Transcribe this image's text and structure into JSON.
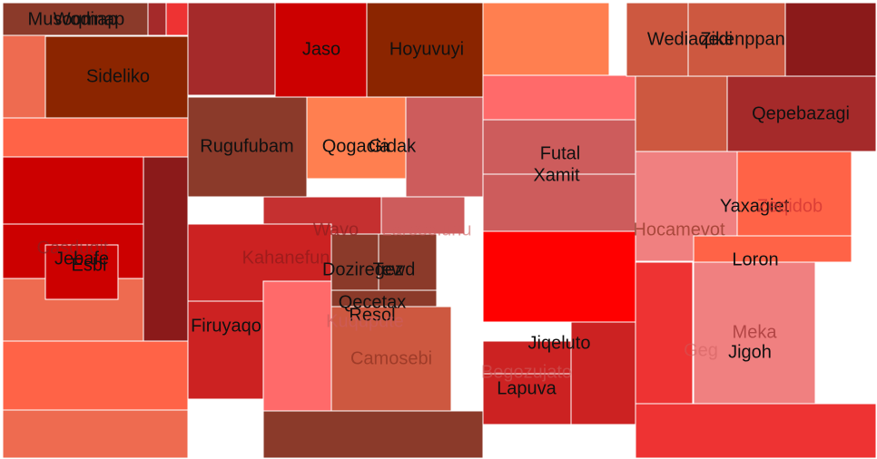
{
  "chart_data": {
    "type": "treemap",
    "title": "",
    "colors": {
      "red": "#ff0000",
      "red2": "#cc0000",
      "red3": "#cc2222",
      "red4": "#ee3333",
      "dark": "#8b1a1a",
      "brown": "#8b2500",
      "brown2": "#8b3a2a",
      "maroon": "#8b0000",
      "rose": "#a52a2a",
      "indian": "#cd5c5c",
      "coral": "#ff7f50",
      "salmon": "#f08080",
      "light": "#ff6a6a",
      "tomato": "#ff6347",
      "terra": "#cd5840",
      "faded": "#ee6b50",
      "brick": "#c53030"
    },
    "nodes": [
      {
        "label": "",
        "color": "faded",
        "value": 30
      },
      {
        "label": "Wodinap",
        "color": "brown2",
        "value": 6
      },
      {
        "label": "Musoqmap",
        "color": "brown2",
        "value": 6
      },
      {
        "label": "",
        "color": "rose",
        "value": 4
      },
      {
        "label": "",
        "color": "red4",
        "value": 4
      },
      {
        "label": "Sideliko",
        "color": "brown",
        "value": 10
      },
      {
        "label": "",
        "color": "tomato",
        "value": 6
      },
      {
        "label": "",
        "color": "red2",
        "value": 12
      },
      {
        "label": "",
        "color": "dark",
        "value": 9
      },
      {
        "label": "Casduqit",
        "color": "red2",
        "value": 8
      },
      {
        "label": "Jebafe",
        "color": "red2",
        "value": 8
      },
      {
        "label": "Esbi",
        "color": "red2",
        "value": 6
      },
      {
        "label": "",
        "color": "tomato",
        "value": 10
      },
      {
        "label": "",
        "color": "faded",
        "value": 8
      },
      {
        "label": "",
        "color": "rose",
        "value": 8
      },
      {
        "label": "Jaso",
        "color": "red2",
        "value": 9
      },
      {
        "label": "Hoyuvuyi",
        "color": "brown",
        "value": 9
      },
      {
        "label": "Rugufubam",
        "color": "brown2",
        "value": 8
      },
      {
        "label": "Qogacia",
        "color": "coral",
        "value": 8
      },
      {
        "label": "Gidak",
        "color": "indian",
        "value": 8
      },
      {
        "label": "Wavo",
        "color": "brick",
        "value": 7
      },
      {
        "label": "Laroselunu",
        "color": "indian",
        "value": 6
      },
      {
        "label": "Kahanefun",
        "color": "red3",
        "value": 7
      },
      {
        "label": "Doziregez",
        "color": "brown2",
        "value": 5
      },
      {
        "label": "Tewd",
        "color": "brown2",
        "value": 5
      },
      {
        "label": "Qecetax",
        "color": "brown2",
        "value": 5
      },
      {
        "label": "Resol",
        "color": "brown2",
        "value": 4
      },
      {
        "label": "Kuqupute",
        "color": "light",
        "value": 6
      },
      {
        "label": "Camosebi",
        "color": "terra",
        "value": 6
      },
      {
        "label": "Firuyaqo",
        "color": "red3",
        "value": 8
      },
      {
        "label": "",
        "color": "brown2",
        "value": 6
      },
      {
        "label": "",
        "color": "coral",
        "value": 12
      },
      {
        "label": "",
        "color": "light",
        "value": 8
      },
      {
        "label": "Futal",
        "color": "indian",
        "value": 10
      },
      {
        "label": "Xamit",
        "color": "indian",
        "value": 10
      },
      {
        "label": "",
        "color": "red",
        "value": 12
      },
      {
        "label": "Jiqeluto",
        "color": "red3",
        "value": 9
      },
      {
        "label": "Begozujato",
        "color": "red3",
        "value": 7
      },
      {
        "label": "Lapuva",
        "color": "red3",
        "value": 7
      },
      {
        "label": "Wediaqedi",
        "color": "terra",
        "value": 8
      },
      {
        "label": "Zikenppan",
        "color": "terra",
        "value": 8
      },
      {
        "label": "",
        "color": "dark",
        "value": 8
      },
      {
        "label": "Qepebazagi",
        "color": "rose",
        "value": 9
      },
      {
        "label": "Hocamevot",
        "color": "terra",
        "value": 7
      },
      {
        "label": "Yaxagiet",
        "color": "salmon",
        "value": 7
      },
      {
        "label": "Zeqidob",
        "color": "tomato",
        "value": 6
      },
      {
        "label": "Loron",
        "color": "tomato",
        "value": 6
      },
      {
        "label": "Meka",
        "color": "salmon",
        "value": 8
      },
      {
        "label": "Geg",
        "color": "red4",
        "value": 7
      },
      {
        "label": "Jigoh",
        "color": "salmon",
        "value": 8
      },
      {
        "label": "",
        "color": "red4",
        "value": 12
      }
    ]
  }
}
